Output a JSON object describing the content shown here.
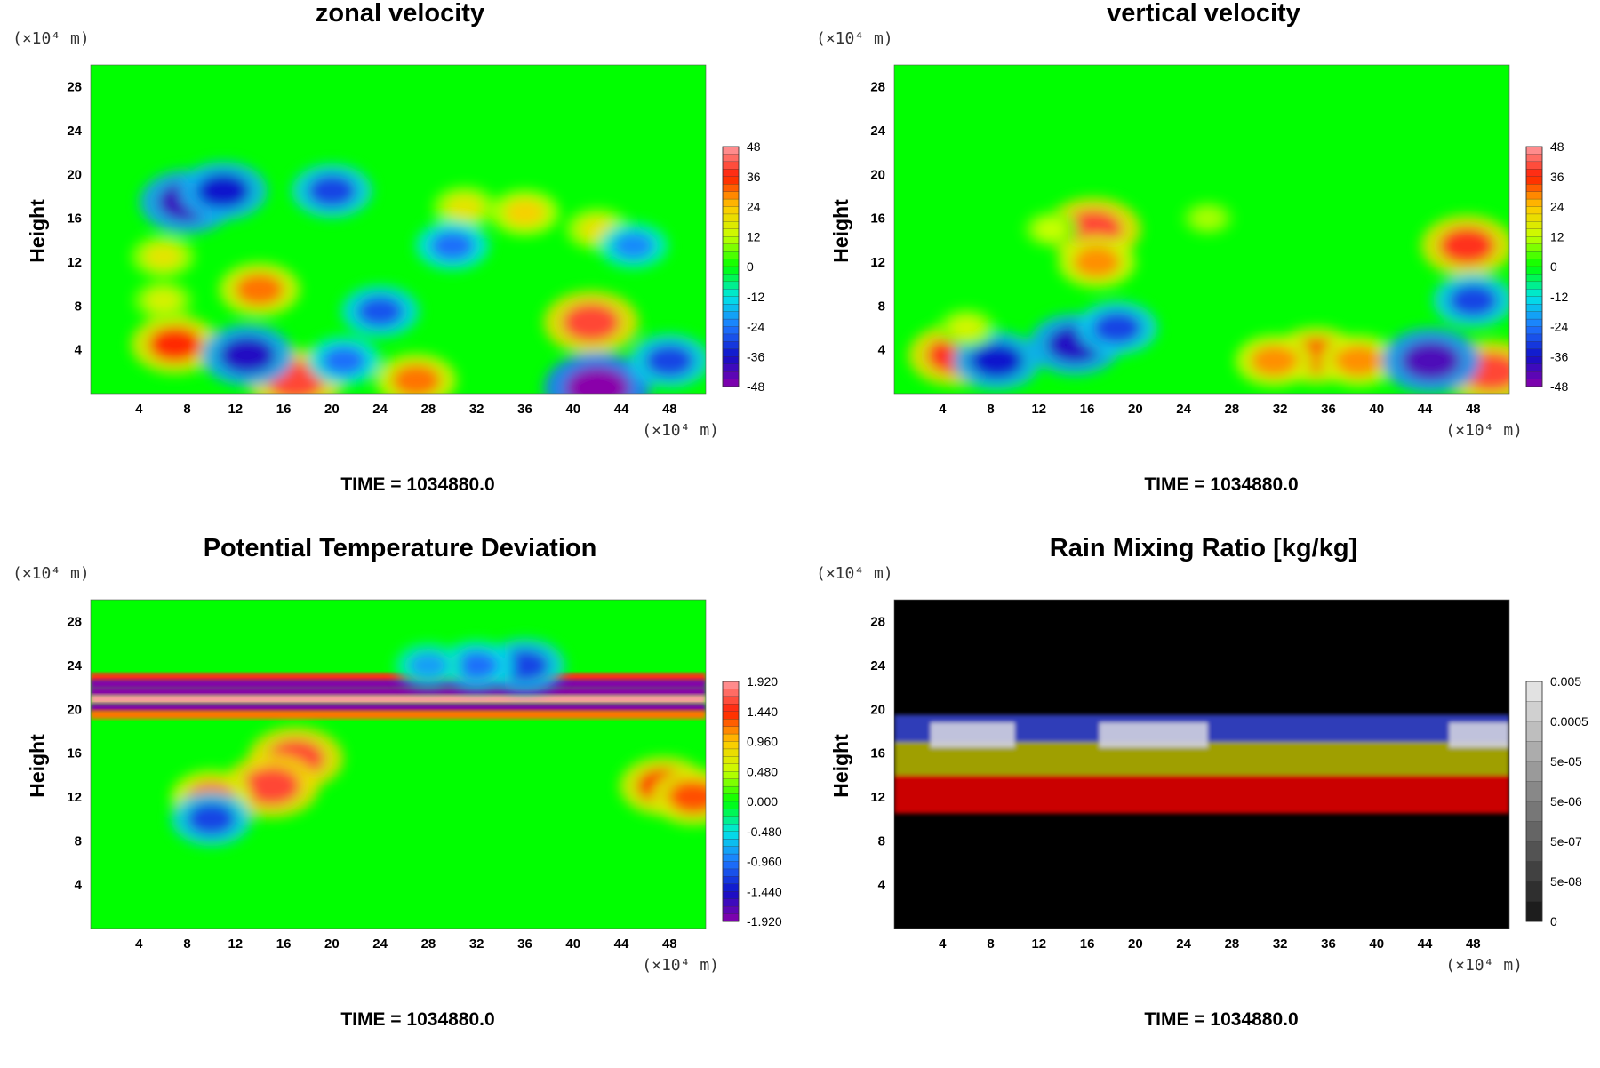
{
  "chart_data": [
    {
      "type": "heatmap",
      "title": "zonal velocity",
      "ylabel": "Height",
      "xunit": "(×10⁴ m)",
      "yunit": "(×10⁴ m)",
      "xticks": [
        "4",
        "8",
        "12",
        "16",
        "20",
        "24",
        "28",
        "32",
        "36",
        "40",
        "44",
        "48"
      ],
      "yticks": [
        "4",
        "8",
        "12",
        "16",
        "20",
        "24",
        "28"
      ],
      "xlim": [
        0,
        51
      ],
      "ylim": [
        0,
        30
      ],
      "colorbar_ticks": [
        "48",
        "36",
        "24",
        "12",
        "0",
        "-12",
        "-24",
        "-36",
        "-48"
      ],
      "colorbar_range": [
        -48,
        48
      ],
      "colormap": "rainbow",
      "background_value": 0,
      "features": [
        {
          "x": 17,
          "y": 1.2,
          "value": 40
        },
        {
          "x": 27,
          "y": 1.2,
          "value": 30
        },
        {
          "x": 41.5,
          "y": 6.5,
          "value": 40
        },
        {
          "x": 7,
          "y": 4.5,
          "value": 35
        },
        {
          "x": 14,
          "y": 9.5,
          "value": 30
        },
        {
          "x": 6,
          "y": 8.5,
          "value": 15
        },
        {
          "x": 36,
          "y": 16.5,
          "value": 22
        },
        {
          "x": 31,
          "y": 17,
          "value": 18
        },
        {
          "x": 42,
          "y": 15,
          "value": 18
        },
        {
          "x": 6,
          "y": 12.5,
          "value": 18
        },
        {
          "x": 42,
          "y": 0.5,
          "value": -48
        },
        {
          "x": 8,
          "y": 17.5,
          "value": -40
        },
        {
          "x": 11,
          "y": 18.5,
          "value": -35
        },
        {
          "x": 20,
          "y": 18.5,
          "value": -30
        },
        {
          "x": 13,
          "y": 3.5,
          "value": -38
        },
        {
          "x": 24,
          "y": 7.5,
          "value": -28
        },
        {
          "x": 30,
          "y": 13.5,
          "value": -25
        },
        {
          "x": 45,
          "y": 13.5,
          "value": -22
        },
        {
          "x": 48,
          "y": 3,
          "value": -30
        },
        {
          "x": 21,
          "y": 3,
          "value": -25
        }
      ],
      "time_label": "TIME = 1034880.0"
    },
    {
      "type": "heatmap",
      "title": "vertical velocity",
      "ylabel": "Height",
      "xunit": "(×10⁴ m)",
      "yunit": "(×10⁴ m)",
      "xticks": [
        "4",
        "8",
        "12",
        "16",
        "20",
        "24",
        "28",
        "32",
        "36",
        "40",
        "44",
        "48"
      ],
      "yticks": [
        "4",
        "8",
        "12",
        "16",
        "20",
        "24",
        "28"
      ],
      "xlim": [
        0,
        51
      ],
      "ylim": [
        0,
        30
      ],
      "colorbar_ticks": [
        "48",
        "36",
        "24",
        "12",
        "0",
        "-12",
        "-24",
        "-36",
        "-48"
      ],
      "colorbar_range": [
        -48,
        48
      ],
      "colormap": "rainbow",
      "background_value": 0,
      "features": [
        {
          "x": 5,
          "y": 3.5,
          "value": 38
        },
        {
          "x": 16.5,
          "y": 15,
          "value": 40
        },
        {
          "x": 16.8,
          "y": 12,
          "value": 28
        },
        {
          "x": 35,
          "y": 3.5,
          "value": 33
        },
        {
          "x": 31.5,
          "y": 3,
          "value": 28
        },
        {
          "x": 38.5,
          "y": 3,
          "value": 28
        },
        {
          "x": 49.5,
          "y": 2,
          "value": 40
        },
        {
          "x": 47.5,
          "y": 13.5,
          "value": 38
        },
        {
          "x": 8.5,
          "y": 3,
          "value": -35
        },
        {
          "x": 15,
          "y": 4.5,
          "value": -38
        },
        {
          "x": 18.5,
          "y": 6,
          "value": -30
        },
        {
          "x": 44.5,
          "y": 3,
          "value": -42
        },
        {
          "x": 48,
          "y": 8.5,
          "value": -30
        },
        {
          "x": 13,
          "y": 15,
          "value": 12
        },
        {
          "x": 26,
          "y": 16,
          "value": 10
        },
        {
          "x": 6,
          "y": 6,
          "value": 14
        }
      ],
      "time_label": "TIME = 1034880.0"
    },
    {
      "type": "heatmap",
      "title": "Potential Temperature Deviation",
      "ylabel": "Height",
      "xunit": "(×10⁴ m)",
      "yunit": "(×10⁴ m)",
      "xticks": [
        "4",
        "8",
        "12",
        "16",
        "20",
        "24",
        "28",
        "32",
        "36",
        "40",
        "44",
        "48"
      ],
      "yticks": [
        "4",
        "8",
        "12",
        "16",
        "20",
        "24",
        "28"
      ],
      "xlim": [
        0,
        51
      ],
      "ylim": [
        0,
        30
      ],
      "colorbar_ticks": [
        "1.920",
        "1.440",
        "0.960",
        "0.480",
        "0.000",
        "-0.480",
        "-0.960",
        "-1.440",
        "-1.920"
      ],
      "colorbar_range": [
        -1.92,
        1.92
      ],
      "colormap": "rainbow",
      "background_value": 0,
      "layers": [
        {
          "y": 22.9,
          "value": 1.5
        },
        {
          "y": 22.3,
          "value": -1.9
        },
        {
          "y": 21.6,
          "value": -2.1
        },
        {
          "y": 20.9,
          "value": 2.2
        },
        {
          "y": 20.1,
          "value": -1.9
        },
        {
          "y": 19.5,
          "value": 1.2
        }
      ],
      "features": [
        {
          "x": 17,
          "y": 15.5,
          "value": 1.6
        },
        {
          "x": 15,
          "y": 13,
          "value": 1.6
        },
        {
          "x": 10,
          "y": 12,
          "value": 1.2
        },
        {
          "x": 47.5,
          "y": 13,
          "value": 1.4
        },
        {
          "x": 50,
          "y": 12,
          "value": 1.3
        },
        {
          "x": 10,
          "y": 10,
          "value": -1.2
        },
        {
          "x": 36,
          "y": 24,
          "value": -1.2
        },
        {
          "x": 32,
          "y": 24,
          "value": -1.0
        },
        {
          "x": 28,
          "y": 24,
          "value": -0.8
        }
      ],
      "time_label": "TIME = 1034880.0"
    },
    {
      "type": "heatmap",
      "title": "Rain Mixing Ratio [kg/kg]",
      "ylabel": "Height",
      "xunit": "(×10⁴ m)",
      "yunit": "(×10⁴ m)",
      "xticks": [
        "4",
        "8",
        "12",
        "16",
        "20",
        "24",
        "28",
        "32",
        "36",
        "40",
        "44",
        "48"
      ],
      "yticks": [
        "4",
        "8",
        "12",
        "16",
        "20",
        "24",
        "28"
      ],
      "xlim": [
        0,
        51
      ],
      "ylim": [
        0,
        30
      ],
      "colorbar_ticks": [
        "0.005",
        "0.0005",
        "5e-05",
        "5e-06",
        "5e-07",
        "5e-08",
        "0"
      ],
      "colormap": "grayscale",
      "background_value": 0,
      "bands": [
        {
          "y_bottom": 10.5,
          "y_top": 14,
          "color": "#e00000"
        },
        {
          "y_bottom": 14,
          "y_top": 17.2,
          "color": "#b0b000"
        },
        {
          "y_bottom": 17,
          "y_top": 19.5,
          "color": "#3344cc"
        },
        {
          "y_bottom": 16.5,
          "y_top": 18.8,
          "color": "#d0d0e0",
          "x_ranges": [
            [
              3,
              10
            ],
            [
              17,
              26
            ],
            [
              46,
              51
            ]
          ]
        }
      ],
      "time_label": "TIME = 1034880.0"
    }
  ],
  "colors": {
    "background": "#ffffff",
    "rain_plot_background": "#000000",
    "rainbow_stops": [
      "#8a00aa",
      "#1010c8",
      "#1e78ff",
      "#00e6e6",
      "#00ff00",
      "#c8ff00",
      "#ffc800",
      "#ff1e00",
      "#ff9aa0"
    ]
  }
}
